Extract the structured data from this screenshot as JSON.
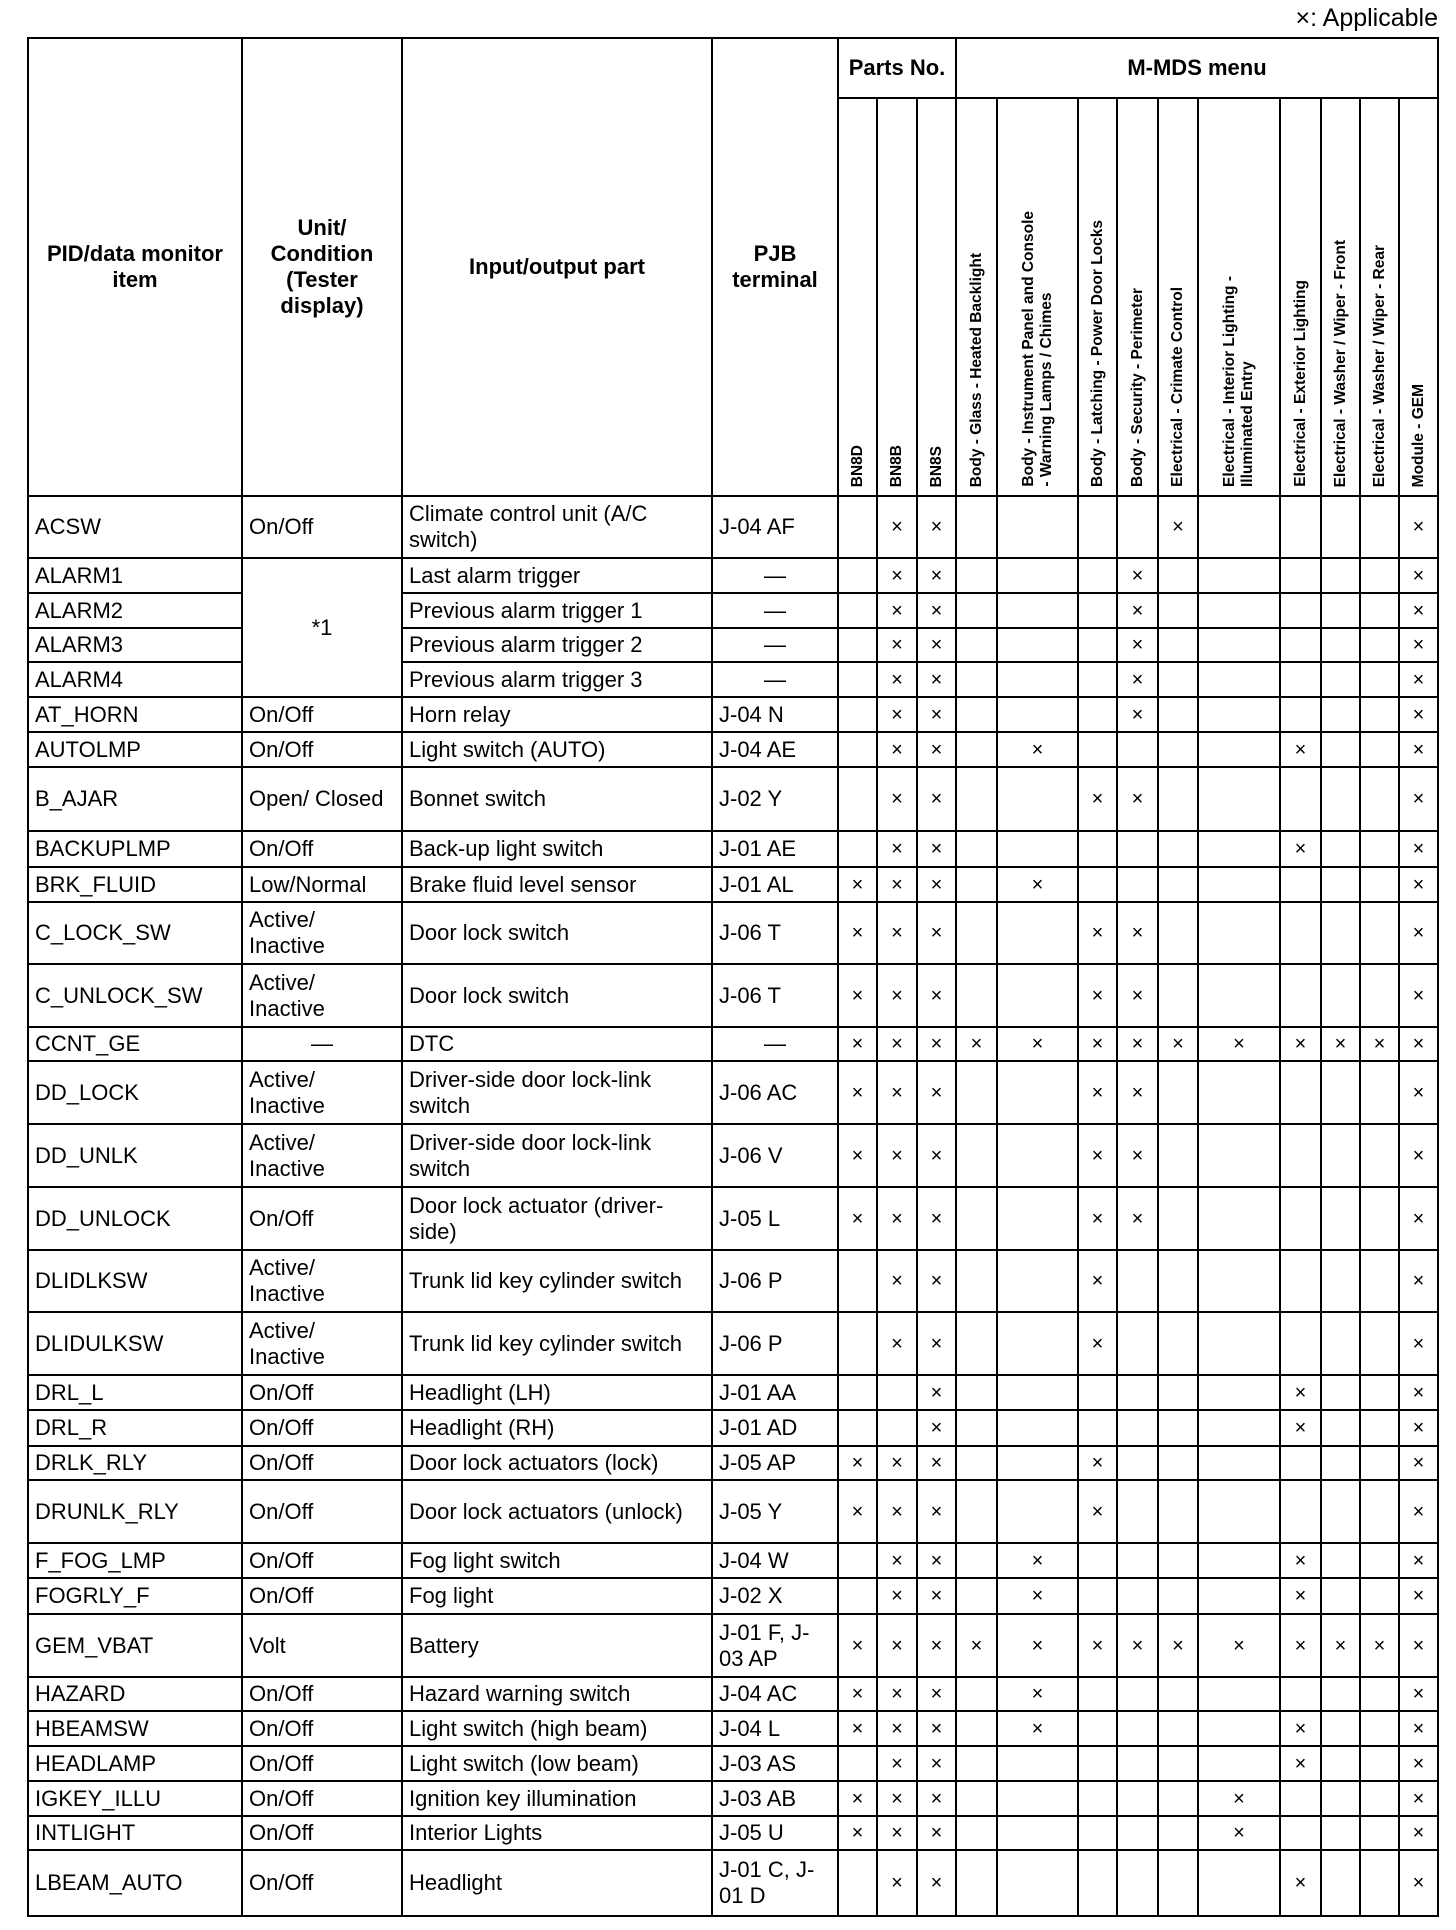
{
  "legend": "×: Applicable",
  "mark_symbol": "×",
  "headers": {
    "pid": "PID/data monitor item",
    "unit": "Unit/ Condition (Tester display)",
    "part": "Input/output part",
    "terminal": "PJB terminal",
    "parts_no": "Parts No.",
    "mmds": "M-MDS menu",
    "parts_cols": [
      "BN8D",
      "BN8B",
      "BN8S"
    ],
    "mmds_cols": [
      "Body - Glass - Heated Backlight",
      "Body - Instrument Panel and Console\n- Warning Lamps / Chimes",
      "Body - Latching - Power Door Locks",
      "Body - Security - Perimeter",
      "Electrical - Crimate Control",
      "Electrical - Interior Lighting -\nIlluminated Entry",
      "Electrical - Exterior Lighting",
      "Electrical - Washer / Wiper - Front",
      "Electrical - Washer / Wiper - Rear",
      "Module - GEM"
    ]
  },
  "rows": [
    {
      "pid": "ACSW",
      "unit": "On/Off",
      "part": "Climate control unit (A/C switch)",
      "terminal": "J-04 AF",
      "marks": "0110000100001"
    },
    {
      "pid": "ALARM1",
      "unit": "*1",
      "unit_span": 4,
      "part": "Last alarm trigger",
      "terminal": "—",
      "marks": "0110001000001"
    },
    {
      "pid": "ALARM2",
      "part": "Previous alarm trigger 1",
      "terminal": "—",
      "marks": "0110001000001"
    },
    {
      "pid": "ALARM3",
      "part": "Previous alarm trigger 2",
      "terminal": "—",
      "marks": "0110001000001"
    },
    {
      "pid": "ALARM4",
      "part": "Previous alarm trigger 3",
      "terminal": "—",
      "marks": "0110001000001"
    },
    {
      "pid": "AT_HORN",
      "unit": "On/Off",
      "part": "Horn relay",
      "terminal": "J-04 N",
      "marks": "0110001000001"
    },
    {
      "pid": "AUTOLMP",
      "unit": "On/Off",
      "part": "Light switch (AUTO)",
      "terminal": "J-04 AE",
      "marks": "0110100001001"
    },
    {
      "pid": "B_AJAR",
      "unit": "Open/ Closed",
      "part": "Bonnet switch",
      "terminal": "J-02 Y",
      "marks": "0110011000001"
    },
    {
      "pid": "BACKUPLMP",
      "unit": "On/Off",
      "part": "Back-up light switch",
      "terminal": "J-01 AE",
      "marks": "0110000001001"
    },
    {
      "pid": "BRK_FLUID",
      "unit": "Low/Normal",
      "part": "Brake fluid level sensor",
      "terminal": "J-01 AL",
      "marks": "1110100000001"
    },
    {
      "pid": "C_LOCK_SW",
      "unit": "Active/ Inactive",
      "part": "Door lock switch",
      "terminal": "J-06 T",
      "marks": "1110011000001"
    },
    {
      "pid": "C_UNLOCK_SW",
      "unit": "Active/ Inactive",
      "part": "Door lock switch",
      "terminal": "J-06 T",
      "marks": "1110011000001"
    },
    {
      "pid": "CCNT_GE",
      "unit": "—",
      "part": "DTC",
      "terminal": "—",
      "marks": "1111111111111"
    },
    {
      "pid": "DD_LOCK",
      "unit": "Active/ Inactive",
      "part": "Driver-side door lock-link switch",
      "terminal": "J-06 AC",
      "marks": "1110011000001"
    },
    {
      "pid": "DD_UNLK",
      "unit": "Active/ Inactive",
      "part": "Driver-side door lock-link switch",
      "terminal": "J-06 V",
      "marks": "1110011000001"
    },
    {
      "pid": "DD_UNLOCK",
      "unit": "On/Off",
      "part": "Door lock actuator (driver-side)",
      "terminal": "J-05 L",
      "marks": "1110011000001"
    },
    {
      "pid": "DLIDLKSW",
      "unit": "Active/ Inactive",
      "part": "Trunk lid key cylinder switch",
      "terminal": "J-06 P",
      "marks": "0110010000001"
    },
    {
      "pid": "DLIDULKSW",
      "unit": "Active/ Inactive",
      "part": "Trunk lid key cylinder switch",
      "terminal": "J-06 P",
      "marks": "0110010000001"
    },
    {
      "pid": "DRL_L",
      "unit": "On/Off",
      "part": "Headlight (LH)",
      "terminal": "J-01 AA",
      "marks": "0010000001001"
    },
    {
      "pid": "DRL_R",
      "unit": "On/Off",
      "part": "Headlight (RH)",
      "terminal": "J-01 AD",
      "marks": "0010000001001"
    },
    {
      "pid": "DRLK_RLY",
      "unit": "On/Off",
      "part": "Door lock actuators (lock)",
      "terminal": "J-05 AP",
      "marks": "1110010000001"
    },
    {
      "pid": "DRUNLK_RLY",
      "unit": "On/Off",
      "part": "Door lock actuators (unlock)",
      "terminal": "J-05 Y",
      "marks": "1110010000001"
    },
    {
      "pid": "F_FOG_LMP",
      "unit": "On/Off",
      "part": "Fog light switch",
      "terminal": "J-04 W",
      "marks": "0110100001001"
    },
    {
      "pid": "FOGRLY_F",
      "unit": "On/Off",
      "part": "Fog light",
      "terminal": "J-02 X",
      "marks": "0110100001001"
    },
    {
      "pid": "GEM_VBAT",
      "unit": "Volt",
      "part": "Battery",
      "terminal": "J-01 F, J-03 AP",
      "marks": "1111111111111"
    },
    {
      "pid": "HAZARD",
      "unit": "On/Off",
      "part": "Hazard warning switch",
      "terminal": "J-04 AC",
      "marks": "1110100000001"
    },
    {
      "pid": "HBEAMSW",
      "unit": "On/Off",
      "part": "Light switch (high beam)",
      "terminal": "J-04 L",
      "marks": "1110100001001"
    },
    {
      "pid": "HEADLAMP",
      "unit": "On/Off",
      "part": "Light switch (low beam)",
      "terminal": "J-03 AS",
      "marks": "0110000001001"
    },
    {
      "pid": "IGKEY_ILLU",
      "unit": "On/Off",
      "part": "Ignition key illumination",
      "terminal": "J-03 AB",
      "marks": "1110000010001"
    },
    {
      "pid": "INTLIGHT",
      "unit": "On/Off",
      "part": "Interior Lights",
      "terminal": "J-05 U",
      "marks": "1110000010001"
    },
    {
      "pid": "LBEAM_AUTO",
      "unit": "On/Off",
      "part": "Headlight",
      "terminal": "J-01 C, J-01 D",
      "marks": "0110000001001"
    }
  ]
}
